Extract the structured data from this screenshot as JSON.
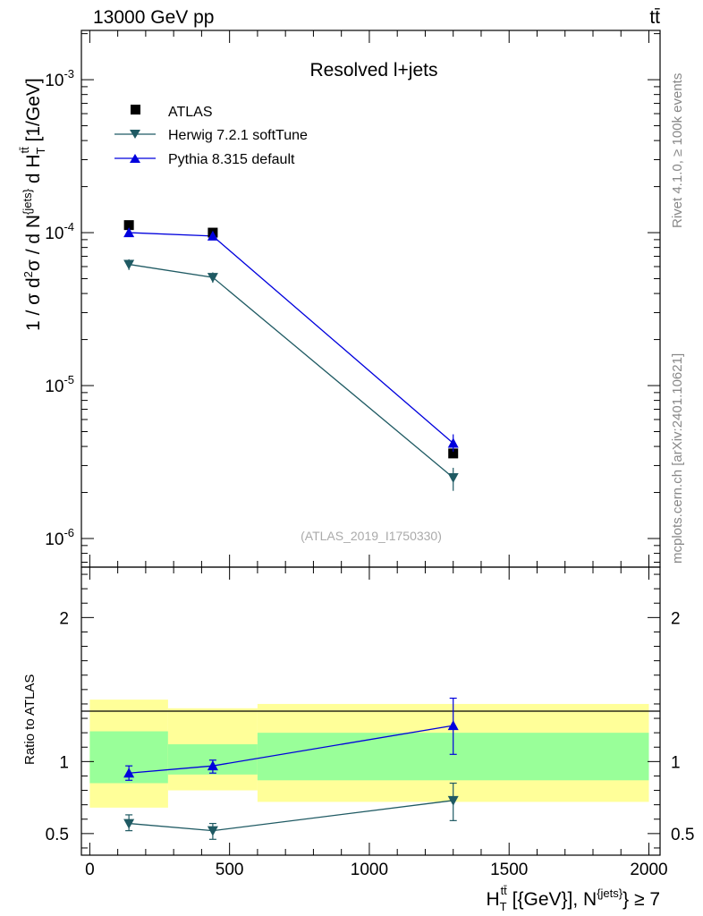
{
  "header": {
    "energy_label": "13000 GeV pp",
    "process_label": "tt̄"
  },
  "side_labels": {
    "rivet": "Rivet 4.1.0, ≥ 100k events",
    "source": "mcplots.cern.ch [arXiv:2401.10621]"
  },
  "chart_data": [
    {
      "type": "scatter",
      "title": "Resolved l+jets",
      "analysis_tag": "(ATLAS_2019_I1750330)",
      "ylabel": "1 / σ d²σ / d N^{jets} d H_T^{tt̄} [1/GeV]",
      "xlabel": "H_T^{tt̄} [{GeV}], N^{jets} ≥ 7",
      "xlim": [
        -30,
        2040
      ],
      "ylim": [
        6.5e-07,
        0.0021
      ],
      "yscale": "log",
      "yticks": [
        {
          "value": 1e-06,
          "label": "10^{-6}"
        },
        {
          "value": 1e-05,
          "label": "10^{-5}"
        },
        {
          "value": 0.0001,
          "label": "10^{-4}"
        },
        {
          "value": 0.001,
          "label": "10^{-3}"
        }
      ],
      "legend_position": "top-left",
      "series": [
        {
          "name": "ATLAS",
          "marker": "square",
          "color": "#000000",
          "line": false,
          "x": [
            140,
            440,
            1300
          ],
          "y": [
            0.000112,
            0.0001,
            3.6e-06
          ]
        },
        {
          "name": "Herwig 7.2.1 softTune",
          "marker": "triangle-down",
          "color": "#1f5a63",
          "line": true,
          "x": [
            140,
            440,
            1300
          ],
          "y": [
            6.2e-05,
            5.1e-05,
            2.5e-06
          ],
          "err_low": [
            5.7e-05,
            4.7e-05,
            2.05e-06
          ],
          "err_high": [
            6.7e-05,
            5.5e-05,
            2.9e-06
          ]
        },
        {
          "name": "Pythia 8.315 default",
          "marker": "triangle-up",
          "color": "#0000dd",
          "line": true,
          "x": [
            140,
            440,
            1300
          ],
          "y": [
            0.0001,
            9.5e-05,
            4.2e-06
          ],
          "err_low": [
            9.6e-05,
            9.2e-05,
            3.7e-06
          ],
          "err_high": [
            0.000104,
            9.8e-05,
            4.8e-06
          ]
        }
      ]
    },
    {
      "type": "scatter",
      "title": "",
      "ylabel": "Ratio to ATLAS",
      "xlabel": "H_T^{tt̄} [{GeV}], N^{jets} ≥ 7",
      "xlim": [
        -30,
        2040
      ],
      "ylim": [
        0.35,
        2.35
      ],
      "xticks": [
        0,
        500,
        1000,
        1500,
        2000
      ],
      "yticks": [
        {
          "value": 0.5,
          "label": "0.5"
        },
        {
          "value": 1,
          "label": "1"
        },
        {
          "value": 2,
          "label": "2"
        }
      ],
      "bands": [
        {
          "x_low": 0,
          "x_high": 280,
          "yellow": [
            0.68,
            1.43
          ],
          "green": [
            0.85,
            1.21
          ]
        },
        {
          "x_low": 280,
          "x_high": 600,
          "yellow": [
            0.8,
            1.37
          ],
          "green": [
            0.91,
            1.12
          ]
        },
        {
          "x_low": 600,
          "x_high": 2000,
          "yellow": [
            0.72,
            1.4
          ],
          "green": [
            0.87,
            1.2
          ]
        }
      ],
      "series": [
        {
          "name": "Herwig 7.2.1 softTune",
          "marker": "triangle-down",
          "color": "#1f5a63",
          "x": [
            140,
            440,
            1300
          ],
          "y": [
            0.57,
            0.52,
            0.73
          ],
          "err_low": [
            0.52,
            0.46,
            0.59
          ],
          "err_high": [
            0.63,
            0.57,
            0.85
          ]
        },
        {
          "name": "Pythia 8.315 default",
          "marker": "triangle-up",
          "color": "#0000dd",
          "x": [
            140,
            440,
            1300
          ],
          "y": [
            0.92,
            0.97,
            1.25
          ],
          "err_low": [
            0.87,
            0.92,
            1.05
          ],
          "err_high": [
            0.97,
            1.01,
            1.44
          ]
        }
      ]
    }
  ]
}
